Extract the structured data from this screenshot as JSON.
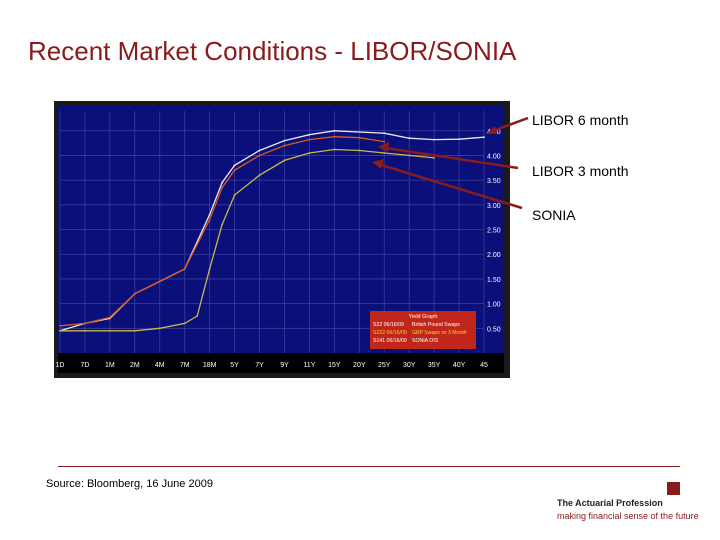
{
  "slide": {
    "title": "Recent Market Conditions - LIBOR/SONIA",
    "source": "Source: Bloomberg, 16 June 2009",
    "logo_name": "The Actuarial Profession",
    "logo_tagline": "making financial sense of the future"
  },
  "callouts": {
    "libor6": "LIBOR 6 month",
    "libor3": "LIBOR 3 month",
    "sonia": "SONIA"
  },
  "colors": {
    "accent": "#8b1a1a",
    "plot_bg": "#0b0f7a",
    "grid": "#3a3f9a",
    "libor6": "#e8e8f0",
    "libor3": "#d95a1a",
    "sonia": "#c8b84a",
    "legend_bg": "#c0271a"
  },
  "chart_data": {
    "type": "line",
    "title": "",
    "xlabel": "",
    "ylabel": "",
    "x_tick_labels": [
      "1D",
      "7D",
      "1M",
      "2M",
      "4M",
      "7M",
      "18M",
      "5Y",
      "7Y",
      "9Y",
      "11Y",
      "15Y",
      "20Y",
      "25Y",
      "30Y",
      "35Y",
      "40Y",
      "45"
    ],
    "y_tick_labels": [
      "0.50",
      "1.00",
      "1.50",
      "2.00",
      "2.50",
      "3.00",
      "3.50",
      "4.00",
      "4.50"
    ],
    "ylim": [
      0.0,
      4.9
    ],
    "legend_panel": {
      "header": "Yield Graph",
      "rows": [
        {
          "code": "S22 06/16/09",
          "label": "British Pound Swaps"
        },
        {
          "code": "S222 06/16/09",
          "label": "GBP Swaps vs 3 Month"
        },
        {
          "code": "S141 06/16/09",
          "label": "SONIA OIS"
        }
      ]
    },
    "series": [
      {
        "key": "libor6",
        "x": [
          0,
          1,
          2,
          3,
          4,
          5,
          6,
          6.5,
          7,
          8,
          9,
          10,
          11,
          13,
          14,
          15,
          16,
          17
        ],
        "y": [
          0.45,
          0.6,
          0.7,
          1.2,
          1.45,
          1.7,
          2.8,
          3.45,
          3.8,
          4.1,
          4.3,
          4.42,
          4.5,
          4.45,
          4.35,
          4.32,
          4.33,
          4.37
        ]
      },
      {
        "key": "libor3",
        "x": [
          0,
          1,
          2,
          3,
          4,
          5,
          6,
          6.5,
          7,
          8,
          9,
          10,
          11,
          12,
          13
        ],
        "y": [
          0.55,
          0.6,
          0.72,
          1.2,
          1.45,
          1.7,
          2.7,
          3.35,
          3.7,
          4.0,
          4.2,
          4.32,
          4.38,
          4.36,
          4.28
        ]
      },
      {
        "key": "sonia",
        "x": [
          0,
          1,
          2,
          3,
          4,
          5,
          5.5,
          6,
          6.5,
          7,
          8,
          9,
          10,
          11,
          12,
          13,
          14,
          15
        ],
        "y": [
          0.45,
          0.45,
          0.45,
          0.45,
          0.5,
          0.6,
          0.75,
          1.7,
          2.6,
          3.2,
          3.6,
          3.9,
          4.05,
          4.12,
          4.1,
          4.05,
          4.0,
          3.95
        ]
      }
    ]
  }
}
